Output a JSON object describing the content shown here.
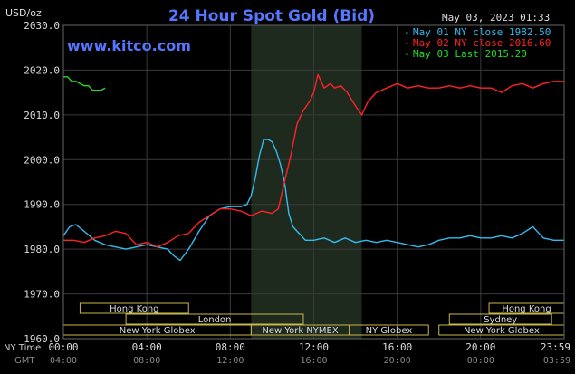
{
  "chart_data": {
    "type": "line",
    "title": "24 Hour Spot Gold (Bid)",
    "watermark": "www.kitco.com",
    "date_stamp": "May 03, 2023 01:33",
    "ylabel": "USD/oz",
    "ylim": [
      1960,
      2030
    ],
    "yticks": [
      "2030.0",
      "2020.0",
      "2010.0",
      "2000.0",
      "1990.0",
      "1980.0",
      "1970.0",
      "1960.0"
    ],
    "xlim": [
      0,
      24
    ],
    "grid": true,
    "time_rows": [
      {
        "label": "NY Time",
        "ticks": [
          "00:00",
          "04:00",
          "08:00",
          "12:00",
          "16:00",
          "20:00",
          "23:59"
        ]
      },
      {
        "label": "GMT",
        "ticks": [
          "04:00",
          "08:00",
          "12:00",
          "16:00",
          "20:00",
          "00:00",
          "03:59"
        ]
      }
    ],
    "shaded_session": [
      9,
      14.3
    ],
    "legend": {
      "placement": "top-right",
      "entries": [
        {
          "marker": "-",
          "text": "May 01 NY close 1982.50",
          "color": "#33bbee"
        },
        {
          "marker": "-",
          "text": "May 02 NY close 2016.60",
          "color": "#ff2222"
        },
        {
          "marker": "-",
          "text": "May 03 Last 2015.20",
          "color": "#22dd22"
        }
      ]
    },
    "sessions": [
      {
        "name": "Hong Kong",
        "start": 0.8,
        "end": 6,
        "row": 0
      },
      {
        "name": "Hong Kong",
        "start": 20.4,
        "end": 24,
        "row": 0
      },
      {
        "name": "London",
        "start": 3,
        "end": 11.5,
        "row": 1
      },
      {
        "name": "Sydney",
        "start": 18.5,
        "end": 23.4,
        "row": 1
      },
      {
        "name": "New York Globex",
        "start": 0,
        "end": 9,
        "row": 2
      },
      {
        "name": "New York NYMEX",
        "start": 9,
        "end": 13.7,
        "row": 2
      },
      {
        "name": "NY Globex",
        "start": 13.7,
        "end": 17.5,
        "row": 2
      },
      {
        "name": "New York Globex",
        "start": 18,
        "end": 24,
        "row": 2
      }
    ],
    "series": [
      {
        "name": "May 01",
        "color": "#33bbee",
        "x": [
          0,
          0.3,
          0.6,
          1.0,
          1.5,
          2.0,
          2.5,
          3.0,
          3.5,
          4.0,
          4.5,
          5.0,
          5.3,
          5.6,
          6.0,
          6.5,
          7.0,
          7.5,
          8.0,
          8.5,
          8.8,
          9.0,
          9.2,
          9.4,
          9.6,
          9.8,
          10.0,
          10.2,
          10.4,
          10.6,
          10.8,
          11.0,
          11.2,
          11.4,
          11.6,
          12.0,
          12.5,
          13.0,
          13.5,
          14.0,
          14.5,
          15.0,
          15.5,
          16.0,
          16.5,
          17.0,
          17.5,
          18.0,
          18.5,
          19.0,
          19.5,
          20.0,
          20.5,
          21.0,
          21.5,
          22.0,
          22.5,
          23.0,
          23.5,
          23.99
        ],
        "values": [
          1983,
          1985,
          1985.5,
          1984,
          1982,
          1981,
          1980.5,
          1980,
          1980.5,
          1981,
          1980.5,
          1980,
          1978.5,
          1977.5,
          1980,
          1984,
          1987.5,
          1989,
          1989.5,
          1989.5,
          1990,
          1992,
          1996,
          2001,
          2004.5,
          2004.5,
          2004,
          2002,
          1999,
          1995,
          1988,
          1985,
          1984,
          1983,
          1982,
          1982,
          1982.5,
          1981.5,
          1982.5,
          1981.5,
          1982,
          1981.5,
          1982,
          1981.5,
          1981,
          1980.5,
          1981,
          1982,
          1982.5,
          1982.5,
          1983,
          1982.5,
          1982.5,
          1983,
          1982.5,
          1983.5,
          1985,
          1982.5,
          1982,
          1982
        ]
      },
      {
        "name": "May 02",
        "color": "#ff2222",
        "x": [
          0,
          0.5,
          1.0,
          1.5,
          2.0,
          2.5,
          3.0,
          3.5,
          4.0,
          4.5,
          5.0,
          5.5,
          6.0,
          6.5,
          7.0,
          7.5,
          8.0,
          8.5,
          9.0,
          9.5,
          10.0,
          10.3,
          10.6,
          10.9,
          11.2,
          11.5,
          11.8,
          12.0,
          12.2,
          12.5,
          12.8,
          13.0,
          13.3,
          13.6,
          14.0,
          14.3,
          14.6,
          15.0,
          15.5,
          16.0,
          16.5,
          17.0,
          17.5,
          18.0,
          18.5,
          19.0,
          19.5,
          20.0,
          20.5,
          21.0,
          21.5,
          22.0,
          22.5,
          23.0,
          23.5,
          23.99
        ],
        "values": [
          1982,
          1982,
          1981.5,
          1982.5,
          1983,
          1984,
          1983.5,
          1981,
          1981.5,
          1980.5,
          1981.5,
          1983,
          1983.5,
          1986,
          1987.5,
          1989,
          1989,
          1988.5,
          1987.5,
          1988.5,
          1988,
          1989,
          1995,
          2001,
          2008,
          2011,
          2013,
          2015,
          2019,
          2016,
          2017,
          2016,
          2016.5,
          2015,
          2012,
          2010,
          2013,
          2015,
          2016,
          2017,
          2016,
          2016.5,
          2016,
          2016,
          2016.5,
          2016,
          2016.5,
          2016,
          2016,
          2015,
          2016.5,
          2017,
          2016,
          2017,
          2017.5,
          2017.5
        ]
      },
      {
        "name": "May 03",
        "color": "#22dd22",
        "x": [
          0,
          0.2,
          0.4,
          0.6,
          0.8,
          1.0,
          1.2,
          1.4,
          1.6,
          1.8,
          2.0
        ],
        "values": [
          2018.5,
          2018.5,
          2017.5,
          2017.5,
          2017,
          2016.5,
          2016.5,
          2015.5,
          2015.5,
          2015.5,
          2016
        ]
      }
    ]
  }
}
